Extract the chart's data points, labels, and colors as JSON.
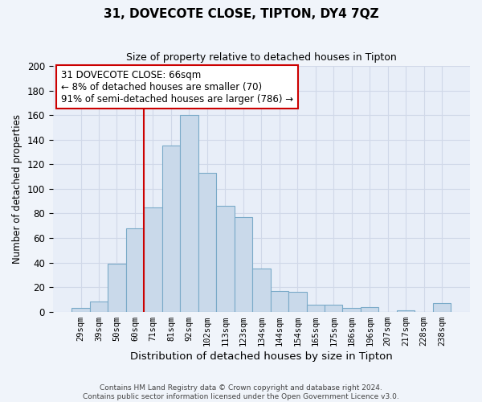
{
  "title": "31, DOVECOTE CLOSE, TIPTON, DY4 7QZ",
  "subtitle": "Size of property relative to detached houses in Tipton",
  "xlabel": "Distribution of detached houses by size in Tipton",
  "ylabel": "Number of detached properties",
  "bin_labels": [
    "29sqm",
    "39sqm",
    "50sqm",
    "60sqm",
    "71sqm",
    "81sqm",
    "92sqm",
    "102sqm",
    "113sqm",
    "123sqm",
    "134sqm",
    "144sqm",
    "154sqm",
    "165sqm",
    "175sqm",
    "186sqm",
    "196sqm",
    "207sqm",
    "217sqm",
    "228sqm",
    "238sqm"
  ],
  "bar_values": [
    3,
    8,
    39,
    68,
    85,
    135,
    160,
    113,
    86,
    77,
    35,
    17,
    16,
    6,
    6,
    3,
    4,
    0,
    1,
    0,
    7
  ],
  "bar_color": "#c9d9ea",
  "bar_edge_color": "#7aaac8",
  "vline_color": "#cc0000",
  "annotation_text": "31 DOVECOTE CLOSE: 66sqm\n← 8% of detached houses are smaller (70)\n91% of semi-detached houses are larger (786) →",
  "annotation_box_color": "#ffffff",
  "annotation_box_edge_color": "#cc0000",
  "ylim": [
    0,
    200
  ],
  "yticks": [
    0,
    20,
    40,
    60,
    80,
    100,
    120,
    140,
    160,
    180,
    200
  ],
  "grid_color": "#d0d8e8",
  "plot_bg_color": "#e8eef8",
  "fig_bg_color": "#f0f4fa",
  "footer_line1": "Contains HM Land Registry data © Crown copyright and database right 2024.",
  "footer_line2": "Contains public sector information licensed under the Open Government Licence v3.0."
}
